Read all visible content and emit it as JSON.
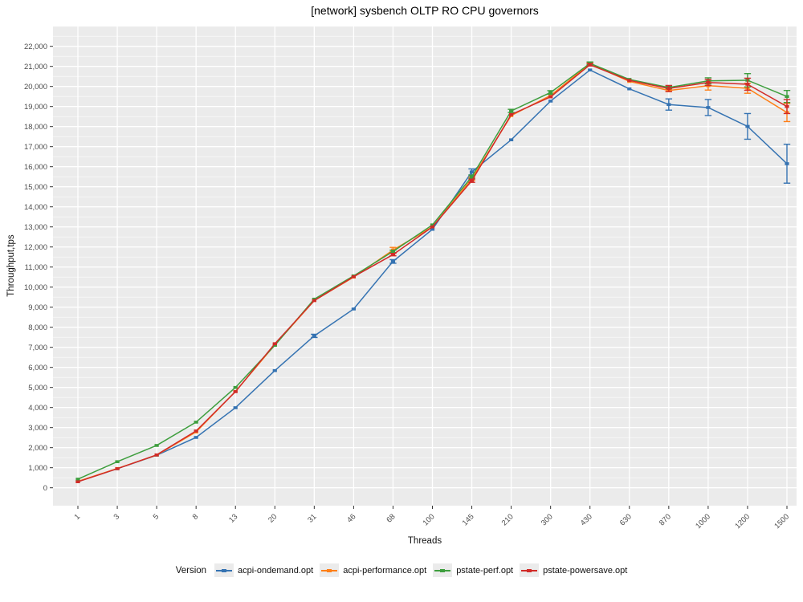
{
  "title": "[network] sysbench OLTP RO CPU governors",
  "x_axis": {
    "title": "Threads"
  },
  "y_axis": {
    "title": "Throughput,tps"
  },
  "legend": {
    "title": "Version"
  },
  "panel": {
    "background": "#EBEBEB",
    "grid_color": "#FFFFFF",
    "tick_color": "#333333",
    "label_color": "#4D4D4D"
  },
  "chart_data": {
    "type": "line",
    "title": "[network] sysbench OLTP RO CPU governors",
    "xlabel": "Threads",
    "ylabel": "Throughput,tps",
    "x_scale": "discrete",
    "grid": "white major+minor horizontal, white major vertical, gray panel",
    "legend_position": "bottom",
    "legend_title": "Version",
    "error_bars": true,
    "ylim": [
      0,
      22990
    ],
    "y_major_step": 1000,
    "y_minor_step": 500,
    "y_max_tick": 22000,
    "categories": [
      "1",
      "3",
      "5",
      "8",
      "13",
      "20",
      "31",
      "46",
      "68",
      "100",
      "145",
      "210",
      "300",
      "430",
      "630",
      "870",
      "1000",
      "1200",
      "1500"
    ],
    "series": [
      {
        "name": "acpi-ondemand.opt",
        "color": "#3573B2",
        "values": [
          310,
          950,
          1620,
          2510,
          3990,
          5840,
          7570,
          8910,
          11280,
          12880,
          15740,
          17340,
          19270,
          20820,
          19880,
          19100,
          18950,
          18010,
          16150
        ],
        "errors": [
          0,
          0,
          0,
          0,
          0,
          0,
          80,
          0,
          90,
          0,
          150,
          0,
          0,
          0,
          0,
          280,
          400,
          640,
          970
        ]
      },
      {
        "name": "acpi-performance.opt",
        "color": "#FF7F17",
        "values": [
          320,
          960,
          1630,
          2780,
          4800,
          7120,
          9330,
          10500,
          11850,
          13000,
          15400,
          18550,
          19550,
          21130,
          20250,
          19800,
          20040,
          19910,
          18700
        ],
        "errors": [
          0,
          0,
          0,
          0,
          0,
          0,
          0,
          0,
          130,
          0,
          80,
          0,
          0,
          60,
          0,
          60,
          220,
          250,
          450
        ]
      },
      {
        "name": "pstate-perf.opt",
        "color": "#3E9E3E",
        "values": [
          430,
          1300,
          2110,
          3270,
          5000,
          7100,
          9400,
          10560,
          11780,
          13100,
          15500,
          18780,
          19700,
          21150,
          20350,
          19950,
          20280,
          20310,
          19500
        ],
        "errors": [
          0,
          0,
          0,
          0,
          0,
          0,
          0,
          0,
          60,
          0,
          80,
          80,
          90,
          70,
          0,
          60,
          150,
          330,
          300
        ]
      },
      {
        "name": "pstate-powersave.opt",
        "color": "#D12B28",
        "values": [
          300,
          950,
          1640,
          2830,
          4790,
          7180,
          9330,
          10520,
          11620,
          13000,
          15300,
          18600,
          19480,
          21080,
          20300,
          19900,
          20200,
          20110,
          19000
        ],
        "errors": [
          0,
          0,
          0,
          0,
          0,
          0,
          0,
          0,
          60,
          0,
          80,
          0,
          0,
          60,
          0,
          150,
          150,
          300,
          350
        ]
      }
    ]
  }
}
